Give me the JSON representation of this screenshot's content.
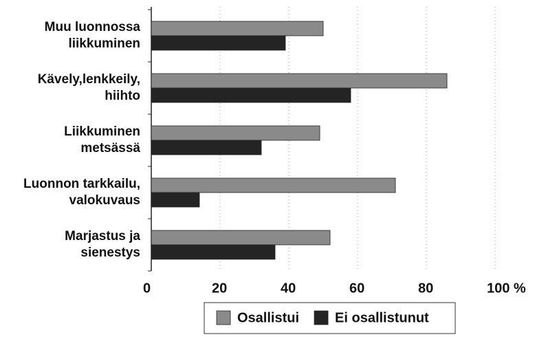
{
  "chart_data": {
    "type": "barh",
    "categories": [
      "Muu luonnossa\nliikkuminen",
      "Kävely,lenkkeily,\nhiihto",
      "Liikkuminen\nmetsässä",
      "Luonnon tarkkailu,\nvalokuvaus",
      "Marjastus ja\nsienestys"
    ],
    "series": [
      {
        "name": "Osallistui",
        "color": "#8a8a8a",
        "values": [
          50,
          86,
          49,
          71,
          52
        ]
      },
      {
        "name": "Ei osallistunut",
        "color": "#242424",
        "values": [
          39,
          58,
          32,
          14,
          36
        ]
      }
    ],
    "xlim": [
      0,
      100
    ],
    "xticks": [
      0,
      20,
      40,
      60,
      80,
      {
        "value": 100,
        "label": "100 %"
      }
    ],
    "grid": true,
    "legend": "bottom"
  }
}
